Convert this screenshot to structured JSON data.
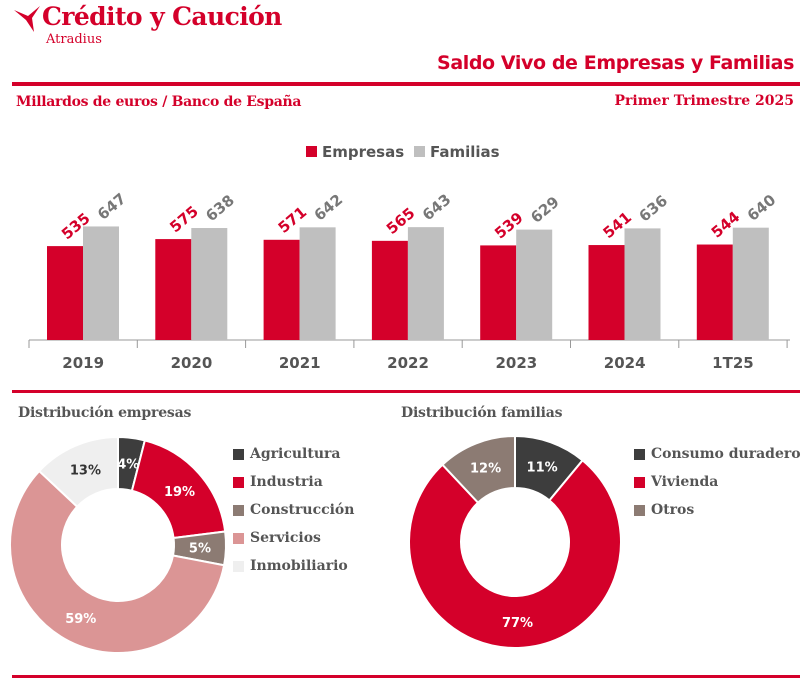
{
  "header": {
    "brand": "Crédito y Caución",
    "brand_sub": "Atradius",
    "title": "Saldo Vivo de Empresas y Familias",
    "units": "Millardos de euros / Banco de España",
    "period": "Primer Trimestre  2025"
  },
  "colors": {
    "brand_red": "#d4002a",
    "empresas": "#d4002a",
    "familias": "#bfbfbf"
  },
  "chart_data": [
    {
      "type": "bar",
      "categories": [
        "2019",
        "2020",
        "2021",
        "2022",
        "2023",
        "2024",
        "1T25"
      ],
      "series": [
        {
          "name": "Empresas",
          "color": "#d4002a",
          "values": [
            535,
            575,
            571,
            565,
            539,
            541,
            544
          ]
        },
        {
          "name": "Familias",
          "color": "#bfbfbf",
          "values": [
            647,
            638,
            642,
            643,
            629,
            636,
            640
          ]
        }
      ],
      "legend_position": "top-center",
      "grid": false
    },
    {
      "type": "pie",
      "title": "Distribución  empresas",
      "donut": true,
      "slices": [
        {
          "label": "Agricultura",
          "value": 4,
          "display": "4%",
          "color": "#3d3d3d"
        },
        {
          "label": "Industria",
          "value": 19,
          "display": "19%",
          "color": "#d4002a"
        },
        {
          "label": "Construcción",
          "value": 5,
          "display": "5%",
          "color": "#8c7b73"
        },
        {
          "label": "Servicios",
          "value": 59,
          "display": "59%",
          "color": "#db9595"
        },
        {
          "label": "Inmobiliario",
          "value": 13,
          "display": "13%",
          "color": "#efefef"
        }
      ],
      "legend_position": "right"
    },
    {
      "type": "pie",
      "title": "Distribución  familias",
      "donut": true,
      "slices": [
        {
          "label": "Consumo duradero",
          "value": 11,
          "display": "11%",
          "color": "#3d3d3d"
        },
        {
          "label": "Vivienda",
          "value": 77,
          "display": "77%",
          "color": "#d4002a"
        },
        {
          "label": "Otros",
          "value": 12,
          "display": "12%",
          "color": "#8c7b73"
        }
      ],
      "legend_position": "right"
    }
  ]
}
